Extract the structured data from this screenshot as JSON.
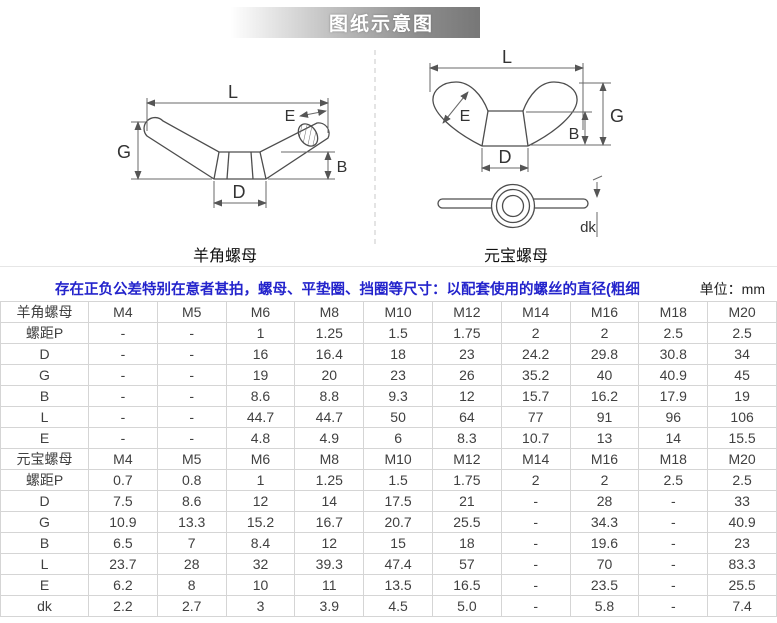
{
  "banner": {
    "title": "图纸示意图"
  },
  "diagrams": {
    "left": {
      "caption": "羊角螺母",
      "dim_L": "L",
      "dim_E": "E",
      "dim_G": "G",
      "dim_B": "B",
      "dim_D": "D"
    },
    "right": {
      "caption": "元宝螺母",
      "dim_L": "L",
      "dim_E": "E",
      "dim_G": "G",
      "dim_B": "B",
      "dim_D": "D",
      "dim_dk": "dk"
    }
  },
  "note": {
    "text": "存在正负公差特别在意者甚拍，螺母、平垫圈、挡圈等尺寸：以配套使用的螺丝的直径(粗细",
    "unit_label": "单位：mm"
  },
  "table": {
    "rows": [
      [
        "羊角螺母",
        "M4",
        "M5",
        "M6",
        "M8",
        "M10",
        "M12",
        "M14",
        "M16",
        "M18",
        "M20"
      ],
      [
        "螺距P",
        "-",
        "-",
        "1",
        "1.25",
        "1.5",
        "1.75",
        "2",
        "2",
        "2.5",
        "2.5"
      ],
      [
        "D",
        "-",
        "-",
        "16",
        "16.4",
        "18",
        "23",
        "24.2",
        "29.8",
        "30.8",
        "34"
      ],
      [
        "G",
        "-",
        "-",
        "19",
        "20",
        "23",
        "26",
        "35.2",
        "40",
        "40.9",
        "45"
      ],
      [
        "B",
        "-",
        "-",
        "8.6",
        "8.8",
        "9.3",
        "12",
        "15.7",
        "16.2",
        "17.9",
        "19"
      ],
      [
        "L",
        "-",
        "-",
        "44.7",
        "44.7",
        "50",
        "64",
        "77",
        "91",
        "96",
        "106"
      ],
      [
        "E",
        "-",
        "-",
        "4.8",
        "4.9",
        "6",
        "8.3",
        "10.7",
        "13",
        "14",
        "15.5"
      ],
      [
        "元宝螺母",
        "M4",
        "M5",
        "M6",
        "M8",
        "M10",
        "M12",
        "M14",
        "M16",
        "M18",
        "M20"
      ],
      [
        "螺距P",
        "0.7",
        "0.8",
        "1",
        "1.25",
        "1.5",
        "1.75",
        "2",
        "2",
        "2.5",
        "2.5"
      ],
      [
        "D",
        "7.5",
        "8.6",
        "12",
        "14",
        "17.5",
        "21",
        "-",
        "28",
        "-",
        "33"
      ],
      [
        "G",
        "10.9",
        "13.3",
        "15.2",
        "16.7",
        "20.7",
        "25.5",
        "-",
        "34.3",
        "-",
        "40.9"
      ],
      [
        "B",
        "6.5",
        "7",
        "8.4",
        "12",
        "15",
        "18",
        "-",
        "19.6",
        "-",
        "23"
      ],
      [
        "L",
        "23.7",
        "28",
        "32",
        "39.3",
        "47.4",
        "57",
        "-",
        "70",
        "-",
        "83.3"
      ],
      [
        "E",
        "6.2",
        "8",
        "10",
        "11",
        "13.5",
        "16.5",
        "-",
        "23.5",
        "-",
        "25.5"
      ],
      [
        "dk",
        "2.2",
        "2.7",
        "3",
        "3.9",
        "4.5",
        "5.0",
        "-",
        "5.8",
        "-",
        "7.4"
      ]
    ]
  },
  "colors": {
    "note_blue": "#2424cc",
    "banner_gray": "#777777",
    "table_border": "#d5d5d5",
    "drawing_line": "#4d4d4d"
  }
}
